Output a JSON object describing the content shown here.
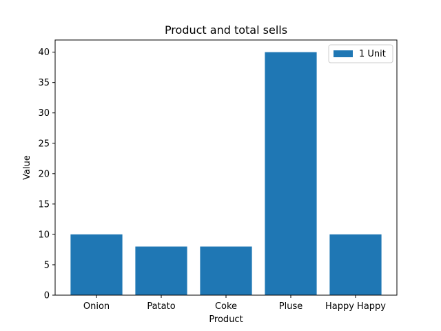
{
  "chart_data": {
    "type": "bar",
    "title": "Product and total sells",
    "xlabel": "Product",
    "ylabel": "Value",
    "categories": [
      "Onion",
      "Patato",
      "Coke",
      "Pluse",
      "Happy Happy"
    ],
    "series": [
      {
        "name": "1 Unit",
        "values": [
          10,
          8,
          8,
          40,
          10
        ],
        "color": "#1f77b4"
      }
    ],
    "ylim": [
      0,
      42
    ],
    "yticks": [
      0,
      5,
      10,
      15,
      20,
      25,
      30,
      35,
      40
    ],
    "grid": false,
    "legend_position": "top-right"
  }
}
